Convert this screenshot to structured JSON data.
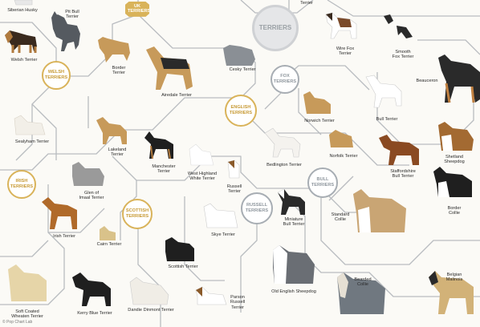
{
  "hubs": {
    "terriers": "TERRIERS",
    "uk_terriers": "UK\nTERRIERS",
    "welsh_terriers": "WELSH\nTERRIERS",
    "irish_terriers": "IRISH\nTERRIERS",
    "scottish_terriers": "SCOTTISH\nTERRIERS",
    "english_terriers": "ENGLISH\nTERRIERS",
    "fox_terriers": "FOX\nTERRIERS",
    "bull_terriers": "BULL\nTERRIERS",
    "russell_terriers": "RUSSELL\nTERRIERS"
  },
  "breeds": {
    "terrier_top": "Terrier",
    "siberian_husky": "Siberian Husky",
    "pit_bull_terrier": "Pit Bull\nTerrier",
    "welsh_terrier": "Welsh Terrier",
    "border_terrier": "Border\nTerrier",
    "airedale_terrier": "Airedale Terrier",
    "cesky_terrier": "Cesky Terrier",
    "wire_fox_terrier": "Wire Fox\nTerrier",
    "smooth_fox_terrier": "Smooth\nFox Terrier",
    "beauceron": "Beauceron",
    "sealyham_terrier": "Sealyham Terrier",
    "lakeland_terrier": "Lakeland\nTerrier",
    "norwich_terrier": "Norwich Terrier",
    "bull_terrier": "Bull Terrier",
    "norfolk_terrier": "Norfolk Terrier",
    "manchester_terrier": "Manchester\nTerrier",
    "west_highland_white_terrier": "West Highland\nWhite Terrier",
    "russell_terrier": "Russell\nTerrier",
    "bedlington_terrier": "Bedlington Terrier",
    "staffordshire_bull_terrier": "Staffordshire\nBull Terrier",
    "shetland_sheepdog": "Shetland\nSheepdog",
    "glen_of_imaal_terrier": "Glen of\nImaal Terrier",
    "border_collie": "Border Collie",
    "standard_collie": "Standard\nCollie",
    "miniature_bull_terrier": "Miniature\nBull Terrier",
    "irish_terrier": "Irish Terrier",
    "cairn_terrier": "Cairn Terrier",
    "skye_terrier": "Skye Terrier",
    "scottish_terrier": "Scottish Terrier",
    "old_english_sheepdog": "Old English Sheepdog",
    "bearded_collie": "Bearded\nCollie",
    "belgian_malinois": "Belgian\nMalinois",
    "soft_coated_wheaten_terrier": "Soft Coated\nWheaten Terrier",
    "kerry_blue_terrier": "Kerry Blue Terrier",
    "dandie_dinmont_terrier": "Dandie Dinmont Terrier",
    "parson_russell_terrier": "Parson\nRussell\nTerrier"
  },
  "credit": "© Pop Chart Lab",
  "colors": {
    "gold": "#d9b35a",
    "gray_hub": "#a7adb3",
    "line": "#b9bcc0",
    "background": "#fbfaf6"
  }
}
